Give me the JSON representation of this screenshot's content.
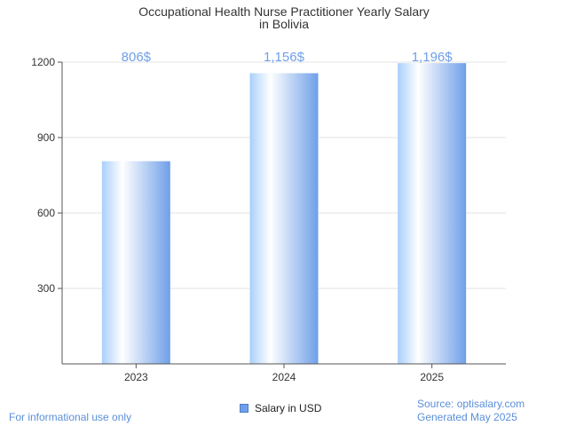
{
  "chart_data": {
    "type": "bar",
    "title_lines": [
      "Occupational Health Nurse Practitioner Yearly Salary",
      "in Bolivia"
    ],
    "categories": [
      "2023",
      "2024",
      "2025"
    ],
    "values": [
      806,
      1156,
      1196
    ],
    "data_labels": [
      "806$",
      "1,156$",
      "1,196$"
    ],
    "y_ticks": [
      300,
      600,
      900,
      1200
    ],
    "y_tick_labels": [
      "300",
      "600",
      "900",
      "1200"
    ],
    "ylim": [
      0,
      1200
    ],
    "grid": true,
    "legend": {
      "label": "Salary in USD",
      "position": "bottom-center"
    },
    "colors": {
      "bar_light": "#cfe6ff",
      "bar_dark": "#6f9fe8",
      "label": "#6fa0e8"
    }
  },
  "footer": {
    "disclaimer": "For informational use only",
    "source": "Source: optisalary.com",
    "generated": "Generated May 2025"
  }
}
